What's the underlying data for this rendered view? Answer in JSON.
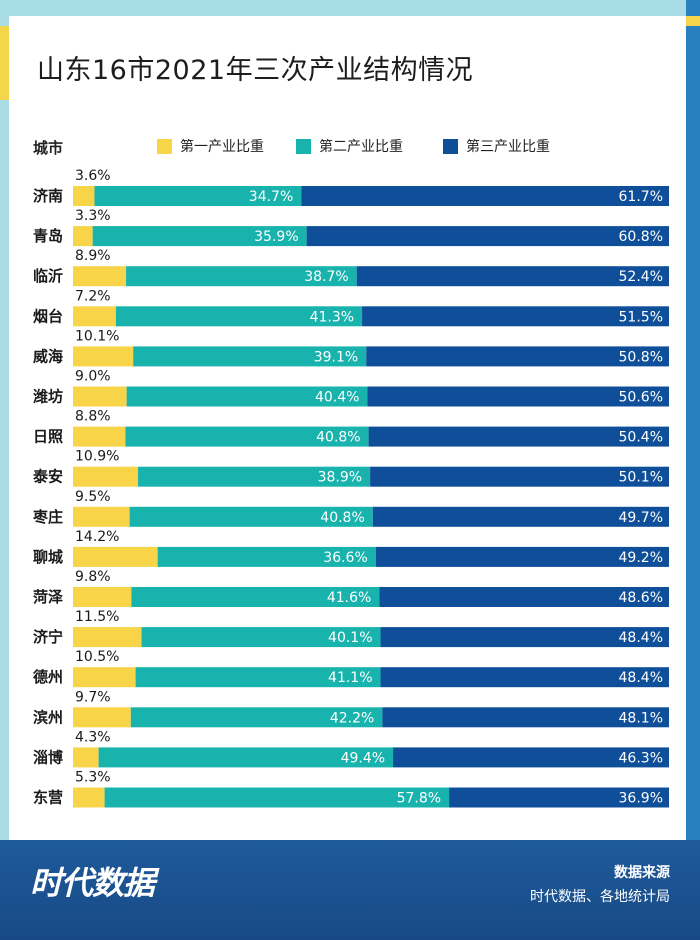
{
  "title": "山东16市2021年三次产业结构情况",
  "column_header": "城市",
  "footer": {
    "logo": "时代数据",
    "source_title": "数据来源",
    "source_text": "时代数据、各地统计局"
  },
  "colors": {
    "primary": "#f8d448",
    "secondary": "#19b3ae",
    "tertiary": "#0f4f9a"
  },
  "chart_data": {
    "type": "bar",
    "orientation": "horizontal",
    "stacked": true,
    "title": "山东16市2021年三次产业结构情况",
    "ylabel": "城市",
    "xlim": [
      0,
      100
    ],
    "unit": "%",
    "legend_position": "top",
    "categories": [
      "济南",
      "青岛",
      "临沂",
      "烟台",
      "威海",
      "潍坊",
      "日照",
      "泰安",
      "枣庄",
      "聊城",
      "菏泽",
      "济宁",
      "德州",
      "滨州",
      "淄博",
      "东营"
    ],
    "series": [
      {
        "name": "第一产业比重",
        "values": [
          3.6,
          3.3,
          8.9,
          7.2,
          10.1,
          9.0,
          8.8,
          10.9,
          9.5,
          14.2,
          9.8,
          11.5,
          10.5,
          9.7,
          4.3,
          5.3
        ]
      },
      {
        "name": "第二产业比重",
        "values": [
          34.7,
          35.9,
          38.7,
          41.3,
          39.1,
          40.4,
          40.8,
          38.9,
          40.8,
          36.6,
          41.6,
          40.1,
          41.1,
          42.2,
          49.4,
          57.8
        ]
      },
      {
        "name": "第三产业比重",
        "values": [
          61.7,
          60.8,
          52.4,
          51.5,
          50.8,
          50.6,
          50.4,
          50.1,
          49.7,
          49.2,
          48.6,
          48.4,
          48.4,
          48.1,
          46.3,
          36.9
        ]
      }
    ]
  }
}
